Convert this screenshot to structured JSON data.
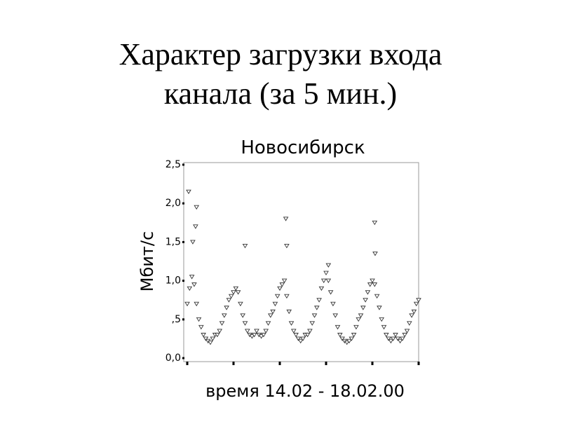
{
  "slide": {
    "title_lines": [
      "Характер загрузки входа",
      "канала (за 5 мин.)"
    ]
  },
  "chart_data": {
    "type": "scatter",
    "title": "Новосибирск",
    "y_label": "Мбит/с",
    "x_label": "время 14.02 - 18.02.00",
    "marker": "triangle-down",
    "color": "#333333",
    "xlim": [
      -0.076,
      5
    ],
    "xticks": [
      0,
      1,
      2,
      3,
      4,
      5
    ],
    "ylim": [
      0,
      2.5
    ],
    "yticks": [
      {
        "value": 0,
        "label": "0,0"
      },
      {
        "value": 0.5,
        "label": ",5"
      },
      {
        "value": 1,
        "label": "1,0"
      },
      {
        "value": 1.5,
        "label": "1,5"
      },
      {
        "value": 2,
        "label": "2,0"
      },
      {
        "value": 2.5,
        "label": "2,5"
      }
    ],
    "x": [
      0.0,
      0.05,
      0.1,
      0.15,
      0.2,
      0.25,
      0.3,
      0.35,
      0.4,
      0.45,
      0.5,
      0.55,
      0.6,
      0.65,
      0.7,
      0.75,
      0.8,
      0.85,
      0.9,
      0.95,
      1.0,
      1.05,
      1.1,
      1.15,
      1.2,
      1.25,
      1.3,
      1.35,
      1.4,
      1.45,
      1.5,
      1.55,
      1.6,
      1.65,
      1.7,
      1.75,
      1.8,
      1.85,
      1.9,
      1.95,
      2.0,
      2.05,
      2.1,
      2.15,
      2.2,
      2.25,
      2.3,
      2.35,
      2.4,
      2.45,
      2.5,
      2.55,
      2.6,
      2.65,
      2.7,
      2.75,
      2.8,
      2.85,
      2.9,
      2.95,
      3.0,
      3.05,
      3.1,
      3.15,
      3.2,
      3.25,
      3.3,
      3.35,
      3.4,
      3.45,
      3.5,
      3.55,
      3.6,
      3.65,
      3.7,
      3.75,
      3.8,
      3.85,
      3.9,
      3.95,
      4.0,
      4.05,
      4.1,
      4.15,
      4.2,
      4.25,
      4.3,
      4.35,
      4.4,
      4.45,
      4.5,
      4.55,
      4.6,
      4.65,
      4.7,
      4.75,
      4.8,
      4.85,
      4.9,
      4.95,
      5.0,
      0.03,
      0.2,
      0.18,
      0.12,
      1.25,
      2.13,
      2.15,
      3.05,
      4.05,
      4.06
    ],
    "values": [
      0.7,
      0.9,
      1.05,
      0.95,
      0.7,
      0.5,
      0.4,
      0.3,
      0.25,
      0.22,
      0.2,
      0.25,
      0.3,
      0.3,
      0.35,
      0.45,
      0.55,
      0.65,
      0.75,
      0.8,
      0.85,
      0.9,
      0.85,
      0.7,
      0.55,
      0.45,
      0.35,
      0.3,
      0.28,
      0.3,
      0.35,
      0.3,
      0.28,
      0.3,
      0.35,
      0.45,
      0.55,
      0.6,
      0.7,
      0.8,
      0.9,
      0.95,
      1.0,
      0.8,
      0.6,
      0.45,
      0.35,
      0.3,
      0.25,
      0.22,
      0.25,
      0.3,
      0.3,
      0.35,
      0.45,
      0.55,
      0.65,
      0.75,
      0.9,
      1.0,
      1.1,
      1.0,
      0.85,
      0.7,
      0.55,
      0.4,
      0.3,
      0.25,
      0.22,
      0.2,
      0.22,
      0.25,
      0.3,
      0.4,
      0.5,
      0.55,
      0.65,
      0.75,
      0.85,
      0.95,
      1.0,
      0.95,
      0.8,
      0.65,
      0.5,
      0.4,
      0.3,
      0.25,
      0.22,
      0.25,
      0.3,
      0.25,
      0.22,
      0.25,
      0.3,
      0.35,
      0.45,
      0.55,
      0.6,
      0.7,
      0.75,
      2.15,
      1.95,
      1.7,
      1.5,
      1.45,
      1.8,
      1.45,
      1.2,
      1.75,
      1.35
    ]
  }
}
